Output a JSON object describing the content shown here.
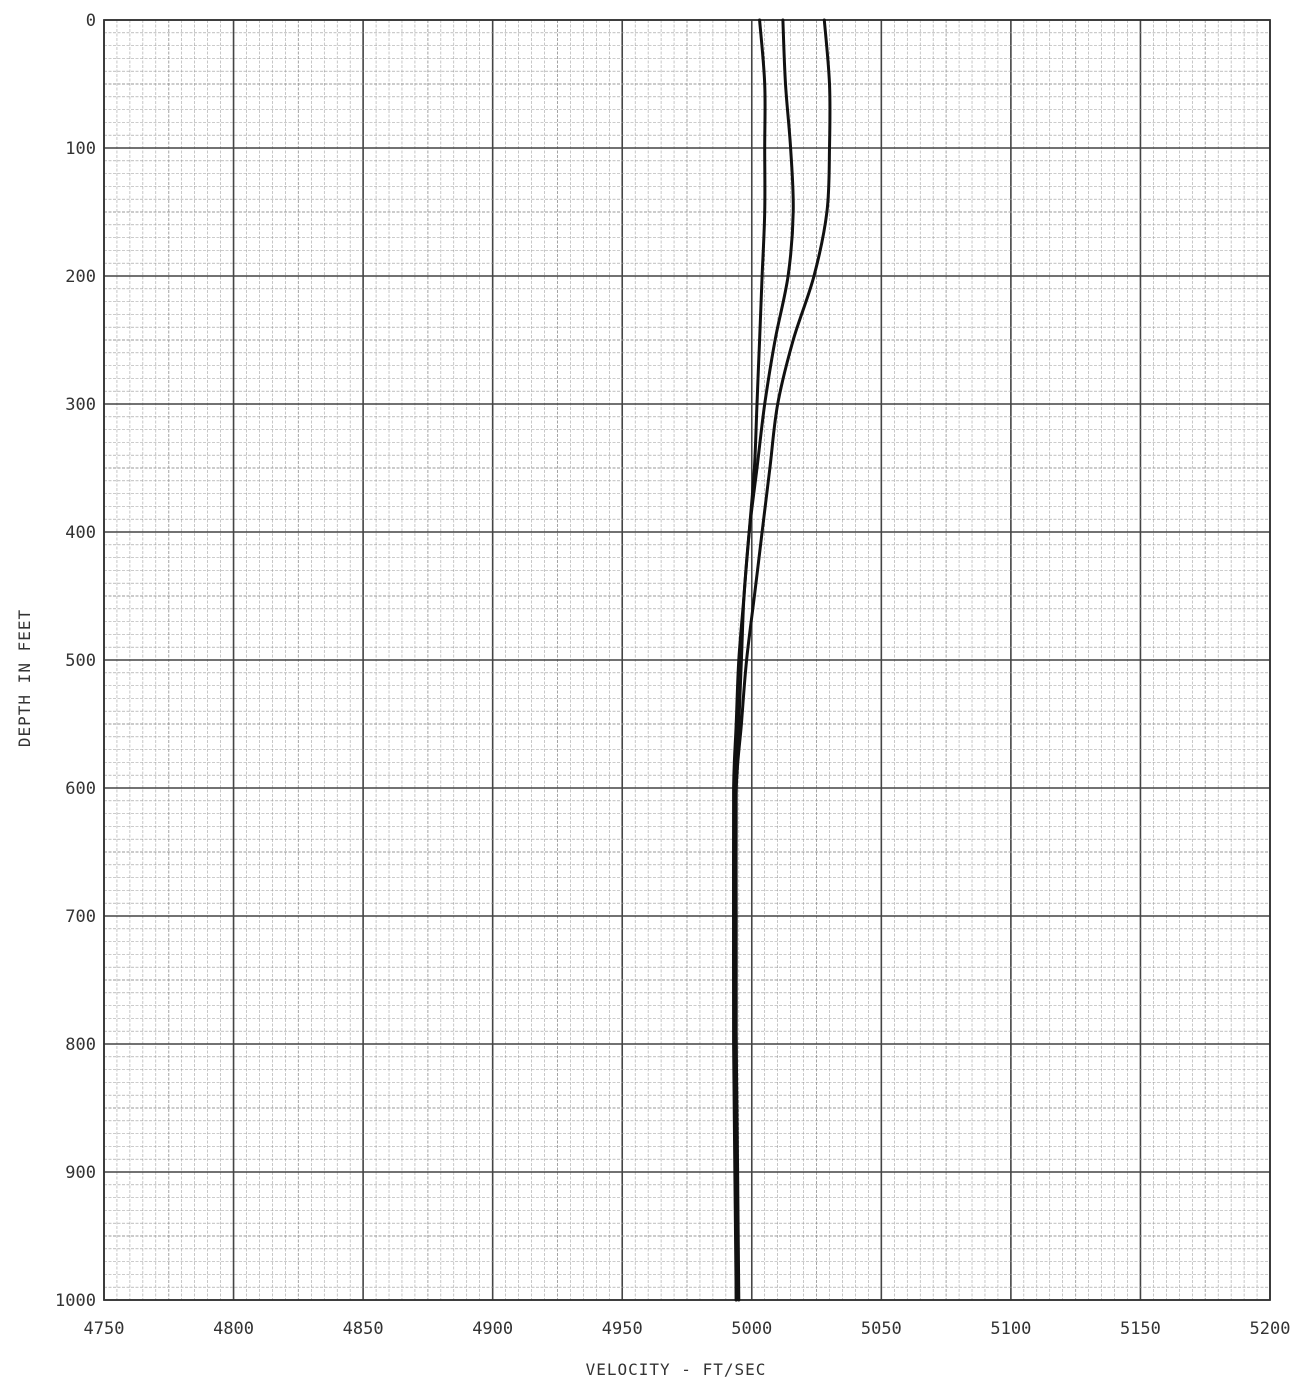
{
  "chart_data": {
    "type": "line",
    "title": "",
    "xlabel": "VELOCITY - FT/SEC",
    "ylabel": "DEPTH IN FEET",
    "xlim": [
      4750,
      5200
    ],
    "ylim": [
      0,
      1000
    ],
    "y_inverted": true,
    "grid": true,
    "x_ticks": [
      4750,
      4800,
      4850,
      4900,
      4950,
      5000,
      5050,
      5100,
      5150,
      5200
    ],
    "y_ticks": [
      0,
      100,
      200,
      300,
      400,
      500,
      600,
      700,
      800,
      900,
      1000
    ],
    "series": [
      {
        "x": [
          5003,
          5005,
          5005,
          5005,
          5004,
          5003,
          5002,
          5001,
          4999,
          4997,
          4996,
          4995,
          4994,
          4994,
          4994,
          4994
        ],
        "y": [
          0,
          50,
          100,
          150,
          200,
          250,
          300,
          350,
          400,
          450,
          500,
          550,
          600,
          700,
          800,
          1000
        ]
      },
      {
        "x": [
          5012,
          5013,
          5015,
          5016,
          5014,
          5009,
          5005,
          5002,
          4999,
          4997,
          4995,
          4994,
          4993,
          4993,
          4993,
          4994
        ],
        "y": [
          0,
          50,
          100,
          150,
          200,
          250,
          300,
          350,
          400,
          450,
          500,
          550,
          600,
          700,
          800,
          1000
        ]
      },
      {
        "x": [
          5028,
          5030,
          5030,
          5029,
          5024,
          5016,
          5010,
          5007,
          5004,
          5001,
          4998,
          4996,
          4994,
          4993,
          4994,
          4995
        ],
        "y": [
          0,
          50,
          100,
          150,
          200,
          250,
          300,
          350,
          400,
          450,
          500,
          550,
          600,
          700,
          800,
          1000
        ]
      }
    ],
    "colors": {
      "line": "#111111",
      "major_grid": "#444444",
      "minor_grid": "#9a9a9a"
    }
  }
}
